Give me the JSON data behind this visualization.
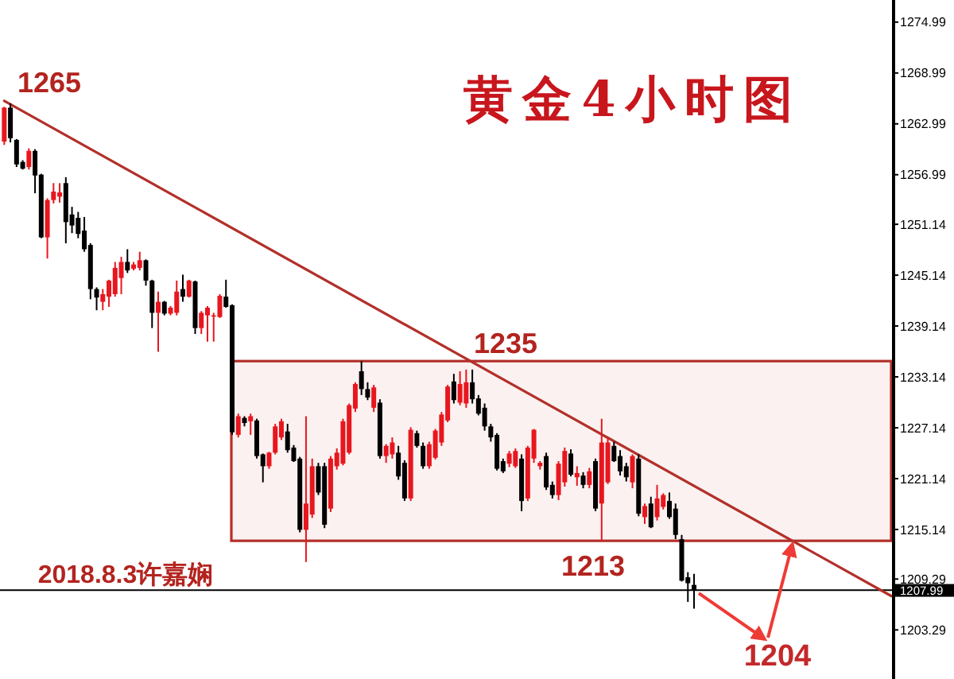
{
  "chart_data": {
    "type": "candlestick",
    "title": "黄金4小时图",
    "categories": [
      null,
      null,
      null,
      null,
      null,
      null,
      null,
      null,
      null,
      null,
      null,
      null,
      null,
      null,
      null,
      null,
      null,
      null,
      null,
      null,
      null,
      null,
      null,
      null,
      null,
      null,
      null,
      null,
      null,
      null,
      null,
      null,
      null,
      null,
      null,
      null,
      null,
      null,
      null,
      null,
      null,
      null,
      null,
      null,
      null,
      null,
      null,
      null,
      null,
      null,
      null,
      null,
      null,
      null,
      null,
      null,
      null,
      null,
      null,
      null,
      null,
      null,
      null,
      null,
      null,
      null,
      null,
      null,
      null,
      null,
      null,
      null,
      null,
      null,
      null,
      null,
      null,
      null,
      null,
      null,
      null,
      null,
      null,
      null,
      null,
      null,
      null,
      null,
      null,
      null,
      null,
      null,
      null,
      null,
      null,
      null,
      null,
      null,
      null,
      null,
      null,
      null,
      null,
      null,
      null,
      null,
      null,
      null,
      null,
      null,
      null,
      null,
      null,
      null,
      null,
      null,
      null,
      null,
      null,
      null,
      null,
      null,
      null,
      null,
      null,
      null,
      null,
      null,
      null,
      null,
      null,
      null,
      null,
      null,
      null,
      null,
      null,
      null,
      null,
      null,
      null,
      null,
      null,
      null,
      null
    ],
    "ohlc": [
      [
        1260.9,
        1265.0,
        1260.5,
        1264.9
      ],
      [
        1264.9,
        1265.4,
        1260.8,
        1261.3
      ],
      [
        1261.1,
        1261.2,
        1257.9,
        1258.2
      ],
      [
        1258.5,
        1258.7,
        1257.6,
        1257.7
      ],
      [
        1257.9,
        1260.1,
        1257.6,
        1259.8
      ],
      [
        1259.8,
        1260.0,
        1254.8,
        1256.9
      ],
      [
        1257.0,
        1257.1,
        1249.5,
        1249.6
      ],
      [
        1249.6,
        1254.2,
        1247.1,
        1254.0
      ],
      [
        1254.0,
        1256.0,
        1253.6,
        1255.0
      ],
      [
        1254.4,
        1256.0,
        1253.7,
        1254.9
      ],
      [
        1256.0,
        1256.7,
        1248.9,
        1251.4
      ],
      [
        1252.3,
        1253.2,
        1250.1,
        1251.0
      ],
      [
        1251.9,
        1252.6,
        1249.5,
        1250.0
      ],
      [
        1250.4,
        1252.0,
        1247.9,
        1248.2
      ],
      [
        1248.7,
        1248.9,
        1242.3,
        1243.5
      ],
      [
        1243.5,
        1243.7,
        1241.0,
        1242.5
      ],
      [
        1242.0,
        1243.5,
        1241.0,
        1242.9
      ],
      [
        1242.6,
        1244.6,
        1241.4,
        1244.5
      ],
      [
        1242.9,
        1246.7,
        1242.6,
        1246.0
      ],
      [
        1244.8,
        1247.3,
        1242.9,
        1246.7
      ],
      [
        1246.7,
        1248.2,
        1245.4,
        1245.7
      ],
      [
        1245.9,
        1246.7,
        1245.7,
        1246.4
      ],
      [
        1246.0,
        1247.9,
        1245.7,
        1246.9
      ],
      [
        1246.9,
        1247.0,
        1243.9,
        1244.5
      ],
      [
        1244.5,
        1244.6,
        1238.9,
        1240.7
      ],
      [
        1240.7,
        1243.2,
        1236.1,
        1242.0
      ],
      [
        1242.0,
        1242.1,
        1240.4,
        1240.6
      ],
      [
        1240.6,
        1241.5,
        1240.4,
        1241.3
      ],
      [
        1240.7,
        1244.5,
        1240.4,
        1243.2
      ],
      [
        1243.5,
        1245.2,
        1242.0,
        1242.6
      ],
      [
        1242.6,
        1244.6,
        1242.5,
        1244.5
      ],
      [
        1244.4,
        1244.5,
        1238.2,
        1238.9
      ],
      [
        1238.9,
        1240.9,
        1238.2,
        1240.7
      ],
      [
        1240.4,
        1241.5,
        1237.3,
        1241.3
      ],
      [
        1240.3,
        1240.7,
        1237.3,
        1240.4
      ],
      [
        1240.2,
        1242.9,
        1240.1,
        1242.7
      ],
      [
        1242.6,
        1244.6,
        1241.3,
        1241.4
      ],
      [
        1241.6,
        1241.7,
        1226.3,
        1226.6
      ],
      [
        1226.3,
        1228.8,
        1226.0,
        1228.5
      ],
      [
        1228.3,
        1228.5,
        1227.3,
        1227.7
      ],
      [
        1227.9,
        1228.8,
        1226.3,
        1228.5
      ],
      [
        1228.0,
        1228.2,
        1223.5,
        1223.8
      ],
      [
        1224.0,
        1224.1,
        1220.7,
        1222.6
      ],
      [
        1222.6,
        1224.3,
        1222.3,
        1224.2
      ],
      [
        1224.2,
        1227.6,
        1224.0,
        1227.3
      ],
      [
        1226.0,
        1228.2,
        1225.7,
        1227.9
      ],
      [
        1226.7,
        1227.6,
        1224.2,
        1224.5
      ],
      [
        1224.8,
        1225.1,
        1223.1,
        1223.2
      ],
      [
        1223.5,
        1223.7,
        1214.8,
        1215.1
      ],
      [
        1215.1,
        1228.5,
        1211.3,
        1218.2
      ],
      [
        1216.9,
        1223.5,
        1216.5,
        1222.6
      ],
      [
        1222.6,
        1223.0,
        1219.2,
        1219.5
      ],
      [
        1222.6,
        1223.0,
        1215.3,
        1215.7
      ],
      [
        1217.6,
        1223.8,
        1217.2,
        1223.5
      ],
      [
        1222.6,
        1224.7,
        1222.2,
        1224.2
      ],
      [
        1222.9,
        1228.2,
        1222.7,
        1227.9
      ],
      [
        1224.2,
        1230.0,
        1224.0,
        1229.8
      ],
      [
        1229.4,
        1232.5,
        1229.0,
        1232.3
      ],
      [
        1233.8,
        1235.0,
        1231.0,
        1231.7
      ],
      [
        1231.7,
        1232.5,
        1230.4,
        1230.7
      ],
      [
        1229.5,
        1232.2,
        1229.0,
        1231.9
      ],
      [
        1230.1,
        1230.5,
        1223.5,
        1223.8
      ],
      [
        1223.8,
        1225.2,
        1223.0,
        1225.0
      ],
      [
        1224.0,
        1226.0,
        1223.5,
        1225.4
      ],
      [
        1224.2,
        1225.0,
        1221.0,
        1221.4
      ],
      [
        1223.0,
        1223.3,
        1218.5,
        1218.8
      ],
      [
        1218.8,
        1227.2,
        1218.5,
        1226.9
      ],
      [
        1226.5,
        1226.8,
        1224.8,
        1225.0
      ],
      [
        1225.0,
        1225.4,
        1222.3,
        1222.6
      ],
      [
        1222.6,
        1225.5,
        1222.3,
        1225.2
      ],
      [
        1223.6,
        1227.0,
        1223.4,
        1226.8
      ],
      [
        1225.4,
        1229.0,
        1225.0,
        1228.7
      ],
      [
        1228.0,
        1232.2,
        1227.8,
        1232.0
      ],
      [
        1232.6,
        1233.5,
        1230.0,
        1230.4
      ],
      [
        1230.1,
        1233.8,
        1229.8,
        1232.3
      ],
      [
        1230.0,
        1234.0,
        1229.5,
        1232.5
      ],
      [
        1232.5,
        1234.0,
        1230.0,
        1230.5
      ],
      [
        1230.6,
        1231.0,
        1228.6,
        1228.8
      ],
      [
        1229.5,
        1230.0,
        1226.8,
        1227.3
      ],
      [
        1227.3,
        1227.6,
        1225.5,
        1226.0
      ],
      [
        1226.3,
        1226.5,
        1222.1,
        1222.3
      ],
      [
        1223.2,
        1223.5,
        1221.8,
        1222.0
      ],
      [
        1222.9,
        1224.4,
        1222.5,
        1224.1
      ],
      [
        1222.6,
        1224.7,
        1222.4,
        1224.4
      ],
      [
        1223.5,
        1224.0,
        1217.3,
        1218.5
      ],
      [
        1218.8,
        1225.0,
        1218.5,
        1224.8
      ],
      [
        1223.5,
        1227.0,
        1223.0,
        1226.9
      ],
      [
        1222.6,
        1223.2,
        1222.2,
        1223.0
      ],
      [
        1223.8,
        1224.2,
        1219.8,
        1220.1
      ],
      [
        1220.4,
        1220.8,
        1218.8,
        1219.2
      ],
      [
        1219.2,
        1223.2,
        1218.6,
        1222.9
      ],
      [
        1220.7,
        1224.8,
        1220.2,
        1224.4
      ],
      [
        1224.1,
        1224.6,
        1221.4,
        1221.6
      ],
      [
        1221.3,
        1222.6,
        1220.3,
        1221.8
      ],
      [
        1221.5,
        1221.9,
        1220.0,
        1220.4
      ],
      [
        1220.4,
        1222.4,
        1220.0,
        1222.0
      ],
      [
        1223.2,
        1223.5,
        1217.3,
        1217.6
      ],
      [
        1218.2,
        1228.2,
        1213.8,
        1225.4
      ],
      [
        1220.7,
        1226.0,
        1220.5,
        1225.4
      ],
      [
        1225.0,
        1225.5,
        1223.1,
        1223.2
      ],
      [
        1223.8,
        1224.5,
        1221.5,
        1222.0
      ],
      [
        1222.6,
        1223.0,
        1220.8,
        1221.3
      ],
      [
        1220.7,
        1224.0,
        1220.0,
        1223.8
      ],
      [
        1223.5,
        1224.0,
        1216.7,
        1217.0
      ],
      [
        1216.6,
        1218.2,
        1215.8,
        1217.9
      ],
      [
        1218.2,
        1219.0,
        1215.3,
        1215.4
      ],
      [
        1216.6,
        1220.4,
        1216.2,
        1218.8
      ],
      [
        1217.8,
        1219.4,
        1217.5,
        1219.2
      ],
      [
        1218.5,
        1219.5,
        1216.4,
        1216.6
      ],
      [
        1217.6,
        1218.2,
        1214.0,
        1214.5
      ],
      [
        1214.0,
        1214.5,
        1209.0,
        1209.1
      ],
      [
        1209.5,
        1210.1,
        1206.6,
        1208.8
      ],
      [
        1208.6,
        1209.9,
        1205.8,
        1208.0
      ],
      null,
      null,
      null,
      null,
      null,
      null,
      null,
      null,
      null,
      null,
      null,
      null,
      null,
      null,
      null,
      null,
      null,
      null,
      null,
      null,
      null,
      null,
      null,
      null,
      null,
      null,
      null,
      null,
      null,
      null,
      null,
      null
    ],
    "colors": [
      "#e8161e",
      "#000000",
      "#000000",
      "#000000",
      "#e8161e",
      "#000000",
      "#000000",
      "#e8161e",
      "#e8161e",
      "#e8161e",
      "#000000",
      "#000000",
      "#000000",
      "#000000",
      "#000000",
      "#000000",
      "#e8161e",
      "#e8161e",
      "#e8161e",
      "#e8161e",
      "#000000",
      "#e8161e",
      "#e8161e",
      "#000000",
      "#000000",
      "#e8161e",
      "#000000",
      "#e8161e",
      "#e8161e",
      "#000000",
      "#e8161e",
      "#000000",
      "#e8161e",
      "#e8161e",
      "#e8161e",
      "#e8161e",
      "#000000",
      "#000000",
      "#e8161e",
      "#000000",
      "#e8161e",
      "#000000",
      "#000000",
      "#e8161e",
      "#e8161e",
      "#e8161e",
      "#000000",
      "#000000",
      "#000000",
      "#e8161e",
      "#e8161e",
      "#000000",
      "#000000",
      "#e8161e",
      "#e8161e",
      "#e8161e",
      "#e8161e",
      "#e8161e",
      "#000000",
      "#000000",
      "#e8161e",
      "#000000",
      "#e8161e",
      "#e8161e",
      "#000000",
      "#000000",
      "#e8161e",
      "#000000",
      "#000000",
      "#e8161e",
      "#e8161e",
      "#e8161e",
      "#e8161e",
      "#000000",
      "#e8161e",
      "#e8161e",
      "#000000",
      "#000000",
      "#000000",
      "#000000",
      "#000000",
      "#000000",
      "#e8161e",
      "#e8161e",
      "#000000",
      "#e8161e",
      "#e8161e",
      "#e8161e",
      "#000000",
      "#000000",
      "#e8161e",
      "#e8161e",
      "#000000",
      "#e8161e",
      "#000000",
      "#e8161e",
      "#000000",
      "#e8161e",
      "#e8161e",
      "#000000",
      "#000000",
      "#000000",
      "#e8161e",
      "#000000",
      "#e8161e",
      "#000000",
      "#e8161e",
      "#e8161e",
      "#000000",
      "#000000",
      "#000000",
      "#000000",
      "#000000",
      null,
      null,
      null,
      null,
      null,
      null,
      null,
      null,
      null,
      null,
      null,
      null,
      null,
      null,
      null,
      null,
      null,
      null,
      null,
      null,
      null,
      null,
      null,
      null,
      null,
      null,
      null,
      null,
      null,
      null,
      null,
      null
    ],
    "series": [
      {
        "type": "line",
        "color": "#b3302a",
        "values": [
          1265.7,
          null,
          null,
          null,
          null,
          null,
          null,
          null,
          null,
          null,
          null,
          null,
          null,
          null,
          null,
          null,
          null,
          null,
          null,
          null,
          null,
          null,
          null,
          null,
          null,
          null,
          null,
          null,
          null,
          null,
          null,
          null,
          null,
          null,
          null,
          null,
          null,
          null,
          null,
          null,
          null,
          null,
          null,
          null,
          null,
          null,
          null,
          null,
          null,
          null,
          null,
          null,
          null,
          null,
          null,
          null,
          null,
          null,
          null,
          null,
          null,
          null,
          null,
          null,
          null,
          null,
          null,
          null,
          null,
          null,
          null,
          null,
          null,
          null,
          null,
          null,
          null,
          null,
          null,
          null,
          null,
          null,
          null,
          null,
          null,
          null,
          null,
          null,
          null,
          null,
          null,
          null,
          null,
          null,
          null,
          null,
          null,
          null,
          null,
          null,
          null,
          null,
          null,
          null,
          null,
          null,
          null,
          null,
          null,
          null,
          null,
          null,
          null,
          null,
          null,
          null,
          null,
          null,
          null,
          null,
          null,
          null,
          null,
          null,
          null,
          null,
          null,
          null,
          null,
          null,
          null,
          null,
          null,
          null,
          null,
          null,
          null,
          null,
          null,
          null,
          null,
          null,
          null,
          null,
          1207.3
        ]
      }
    ],
    "bands": [
      {
        "axis": "y",
        "from": 1213.8,
        "to": 1235.0,
        "color": "#b3302a"
      }
    ],
    "ylim": [
      1197.5,
      1277.6
    ],
    "yticks": [
      1203.29,
      1209.29,
      1215.14,
      1221.14,
      1227.14,
      1233.14,
      1239.14,
      1245.14,
      1251.14,
      1256.99,
      1262.99,
      1268.99,
      1274.99
    ],
    "tick_labels": "y",
    "ref_lines": [
      {
        "axis": "y",
        "value": 1207.99,
        "label": "1207.99",
        "color": "#000000"
      }
    ],
    "annotations": [
      "1265",
      "1235",
      "1213",
      "1204",
      "2018.8.3许嘉娴"
    ]
  }
}
